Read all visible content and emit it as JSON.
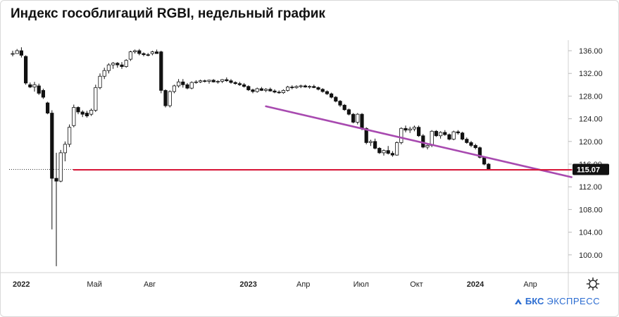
{
  "title": "Индекс гособлигаций RGBI, недельный график",
  "brand": {
    "mark": "БКС",
    "rest": "ЭКСПРЕСС"
  },
  "last_price": "115.07",
  "chart_data": {
    "type": "candlestick",
    "ylim": [
      97,
      138
    ],
    "y_ticks": [
      "136.00",
      "132.00",
      "128.00",
      "124.00",
      "120.00",
      "116.00",
      "112.00",
      "108.00",
      "104.00",
      "100.00"
    ],
    "x_ticks": [
      {
        "label": "2022",
        "bold": true,
        "week": 0
      },
      {
        "label": "Май",
        "bold": false,
        "week": 17
      },
      {
        "label": "Авг",
        "bold": false,
        "week": 30
      },
      {
        "label": "2023",
        "bold": true,
        "week": 52
      },
      {
        "label": "Апр",
        "bold": false,
        "week": 65
      },
      {
        "label": "Июл",
        "bold": false,
        "week": 78
      },
      {
        "label": "Окт",
        "bold": false,
        "week": 91
      },
      {
        "label": "2024",
        "bold": true,
        "week": 104
      },
      {
        "label": "Апр",
        "bold": false,
        "week": 117
      }
    ],
    "candles": [
      [
        135.5,
        136.0,
        135.0,
        135.5
      ],
      [
        135.5,
        136.3,
        135.5,
        136.0
      ],
      [
        136.0,
        136.6,
        134.8,
        135.2
      ],
      [
        135.0,
        135.2,
        130.0,
        130.3
      ],
      [
        130.0,
        130.4,
        129.4,
        129.6
      ],
      [
        129.6,
        130.5,
        128.8,
        130.0
      ],
      [
        129.8,
        130.2,
        128.2,
        128.5
      ],
      [
        129.0,
        129.3,
        127.5,
        127.8
      ],
      [
        126.8,
        127.0,
        124.8,
        125.0
      ],
      [
        125.0,
        125.5,
        104.5,
        113.5
      ],
      [
        113.5,
        118.0,
        98.0,
        113.0
      ],
      [
        113.0,
        118.5,
        112.8,
        118.0
      ],
      [
        118.0,
        120.0,
        116.5,
        119.5
      ],
      [
        119.5,
        123.0,
        119.0,
        122.5
      ],
      [
        122.8,
        126.5,
        122.5,
        126.0
      ],
      [
        126.0,
        126.2,
        124.8,
        125.2
      ],
      [
        125.2,
        125.5,
        124.3,
        124.8
      ],
      [
        125.0,
        125.4,
        124.2,
        124.5
      ],
      [
        124.8,
        125.8,
        124.5,
        125.5
      ],
      [
        125.5,
        130.0,
        125.2,
        129.5
      ],
      [
        129.5,
        132.0,
        129.2,
        131.5
      ],
      [
        131.5,
        133.0,
        131.0,
        132.5
      ],
      [
        132.5,
        133.8,
        132.0,
        133.5
      ],
      [
        133.5,
        134.0,
        132.8,
        133.8
      ],
      [
        133.8,
        134.0,
        133.0,
        133.5
      ],
      [
        133.5,
        134.0,
        132.8,
        133.2
      ],
      [
        133.2,
        134.5,
        133.0,
        134.3
      ],
      [
        134.5,
        136.0,
        134.2,
        135.8
      ],
      [
        135.8,
        136.2,
        135.5,
        136.0
      ],
      [
        136.0,
        136.3,
        135.2,
        135.5
      ],
      [
        135.5,
        135.7,
        135.0,
        135.3
      ],
      [
        135.3,
        135.6,
        135.0,
        135.2
      ],
      [
        135.5,
        136.0,
        135.2,
        135.8
      ],
      [
        135.8,
        136.2,
        135.5,
        135.5
      ],
      [
        135.8,
        136.0,
        128.5,
        129.0
      ],
      [
        129.0,
        129.2,
        126.0,
        126.3
      ],
      [
        126.3,
        129.0,
        126.0,
        128.8
      ],
      [
        128.8,
        130.0,
        128.5,
        129.8
      ],
      [
        129.8,
        131.0,
        129.5,
        130.5
      ],
      [
        130.5,
        131.0,
        129.5,
        130.0
      ],
      [
        130.0,
        130.3,
        129.2,
        129.4
      ],
      [
        129.4,
        130.6,
        129.2,
        130.4
      ],
      [
        130.4,
        130.8,
        130.2,
        130.5
      ],
      [
        130.5,
        130.9,
        130.3,
        130.7
      ],
      [
        130.7,
        130.9,
        130.4,
        130.6
      ],
      [
        130.6,
        130.9,
        130.2,
        130.8
      ],
      [
        130.8,
        131.0,
        130.4,
        130.5
      ],
      [
        130.5,
        130.8,
        130.2,
        130.6
      ],
      [
        130.6,
        131.0,
        130.3,
        130.9
      ],
      [
        130.9,
        131.3,
        130.5,
        130.7
      ],
      [
        130.7,
        131.0,
        130.2,
        130.4
      ],
      [
        130.4,
        130.6,
        130.0,
        130.2
      ],
      [
        130.2,
        130.5,
        129.8,
        130.0
      ],
      [
        130.0,
        130.3,
        129.5,
        129.7
      ],
      [
        129.7,
        129.9,
        128.9,
        129.1
      ],
      [
        129.1,
        129.3,
        128.5,
        128.8
      ],
      [
        128.8,
        129.5,
        128.6,
        129.3
      ],
      [
        129.3,
        129.6,
        128.9,
        129.0
      ],
      [
        129.0,
        129.4,
        128.7,
        129.2
      ],
      [
        129.2,
        129.5,
        128.8,
        128.9
      ],
      [
        128.9,
        129.2,
        128.5,
        128.7
      ],
      [
        128.7,
        129.0,
        128.4,
        128.6
      ],
      [
        128.6,
        129.2,
        128.4,
        129.0
      ],
      [
        129.0,
        129.8,
        128.8,
        129.6
      ],
      [
        129.6,
        129.9,
        129.2,
        129.5
      ],
      [
        129.5,
        129.9,
        129.3,
        129.7
      ],
      [
        129.7,
        130.0,
        129.4,
        129.8
      ],
      [
        129.8,
        130.0,
        129.5,
        129.6
      ],
      [
        129.6,
        129.9,
        129.3,
        129.7
      ],
      [
        129.7,
        130.0,
        129.4,
        129.5
      ],
      [
        129.5,
        129.7,
        129.0,
        129.2
      ],
      [
        129.2,
        129.4,
        128.6,
        128.8
      ],
      [
        128.8,
        129.0,
        128.2,
        128.4
      ],
      [
        128.4,
        128.6,
        127.6,
        127.8
      ],
      [
        127.8,
        128.0,
        126.9,
        127.1
      ],
      [
        127.1,
        127.3,
        126.1,
        126.4
      ],
      [
        126.4,
        126.6,
        125.4,
        125.6
      ],
      [
        125.6,
        125.8,
        124.6,
        124.8
      ],
      [
        124.8,
        125.0,
        123.2,
        123.4
      ],
      [
        123.4,
        125.0,
        123.0,
        124.8
      ],
      [
        124.8,
        125.0,
        122.0,
        122.3
      ],
      [
        122.3,
        122.5,
        119.5,
        119.8
      ],
      [
        119.8,
        120.3,
        119.2,
        120.0
      ],
      [
        120.0,
        120.5,
        118.6,
        118.8
      ],
      [
        118.8,
        119.0,
        117.8,
        118.0
      ],
      [
        118.0,
        118.6,
        117.5,
        118.4
      ],
      [
        118.4,
        119.2,
        117.7,
        117.9
      ],
      [
        117.9,
        118.3,
        117.3,
        117.6
      ],
      [
        117.6,
        120.0,
        117.5,
        119.8
      ],
      [
        119.8,
        122.5,
        119.5,
        122.3
      ],
      [
        122.3,
        122.8,
        121.6,
        122.0
      ],
      [
        122.0,
        122.6,
        121.5,
        122.2
      ],
      [
        122.2,
        122.8,
        121.8,
        122.5
      ],
      [
        122.5,
        122.8,
        120.8,
        121.0
      ],
      [
        121.0,
        121.3,
        118.8,
        119.0
      ],
      [
        119.0,
        119.5,
        118.6,
        119.3
      ],
      [
        119.3,
        122.0,
        119.0,
        121.8
      ],
      [
        121.8,
        122.0,
        120.8,
        121.0
      ],
      [
        121.0,
        121.8,
        120.5,
        121.6
      ],
      [
        121.6,
        122.0,
        121.0,
        121.2
      ],
      [
        121.2,
        121.4,
        120.2,
        120.4
      ],
      [
        120.4,
        121.9,
        120.2,
        121.7
      ],
      [
        121.7,
        122.0,
        121.2,
        121.5
      ],
      [
        121.5,
        121.7,
        120.2,
        120.4
      ],
      [
        120.4,
        120.7,
        119.6,
        119.8
      ],
      [
        119.8,
        120.1,
        119.0,
        119.3
      ],
      [
        119.3,
        119.6,
        118.6,
        118.9
      ],
      [
        118.9,
        119.1,
        117.0,
        117.2
      ],
      [
        117.2,
        117.4,
        115.8,
        116.0
      ],
      [
        116.0,
        116.2,
        114.9,
        115.07
      ]
    ],
    "lines": [
      {
        "name": "",
        "color": "#a84ab0",
        "points": [
          [
            58,
            126.2
          ],
          [
            128,
            113.7
          ]
        ]
      },
      {
        "name": "",
        "color": "#d81b3c",
        "points": [
          [
            14,
            115.0
          ],
          [
            128,
            115.0
          ]
        ]
      }
    ]
  }
}
